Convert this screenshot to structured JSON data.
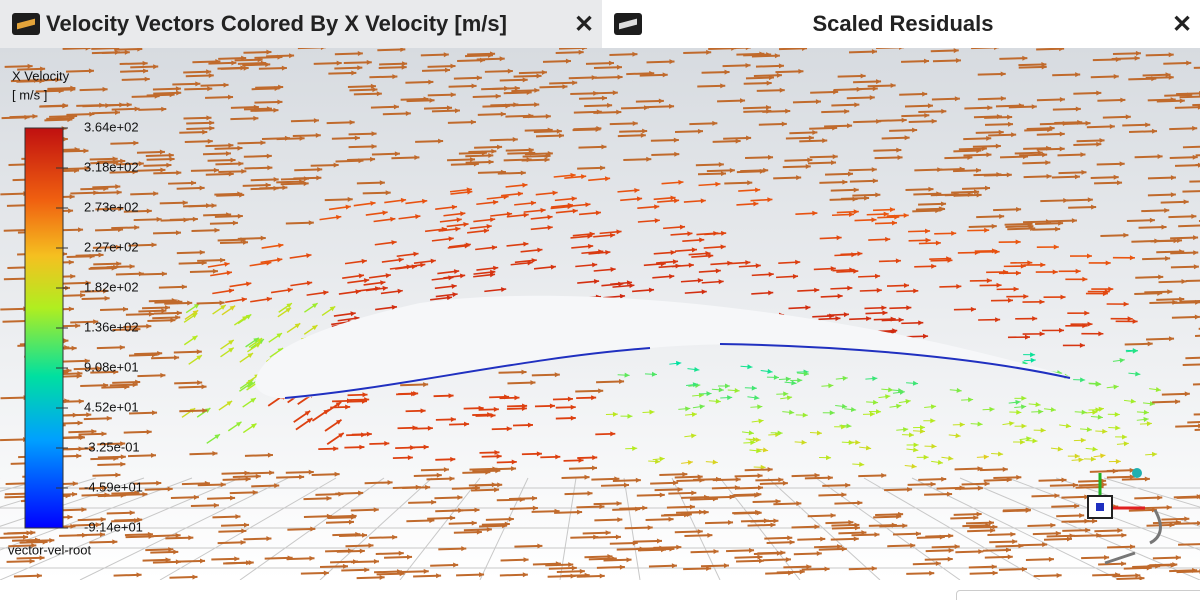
{
  "tabs": [
    {
      "title": "Velocity Vectors Colored By X Velocity [m/s]",
      "close": "✕"
    },
    {
      "title": "Scaled Residuals",
      "close": "✕"
    }
  ],
  "colorbar": {
    "title": "X Velocity",
    "unit": "[ m/s ]",
    "labels": [
      "3.64e+02",
      "3.18e+02",
      "2.73e+02",
      "2.27e+02",
      "1.82e+02",
      "1.36e+02",
      "9.08e+01",
      "4.52e+01",
      "-3.25e-01",
      "-4.59e+01",
      "-9.14e+01"
    ]
  },
  "object_name": "vector-vel-root"
}
